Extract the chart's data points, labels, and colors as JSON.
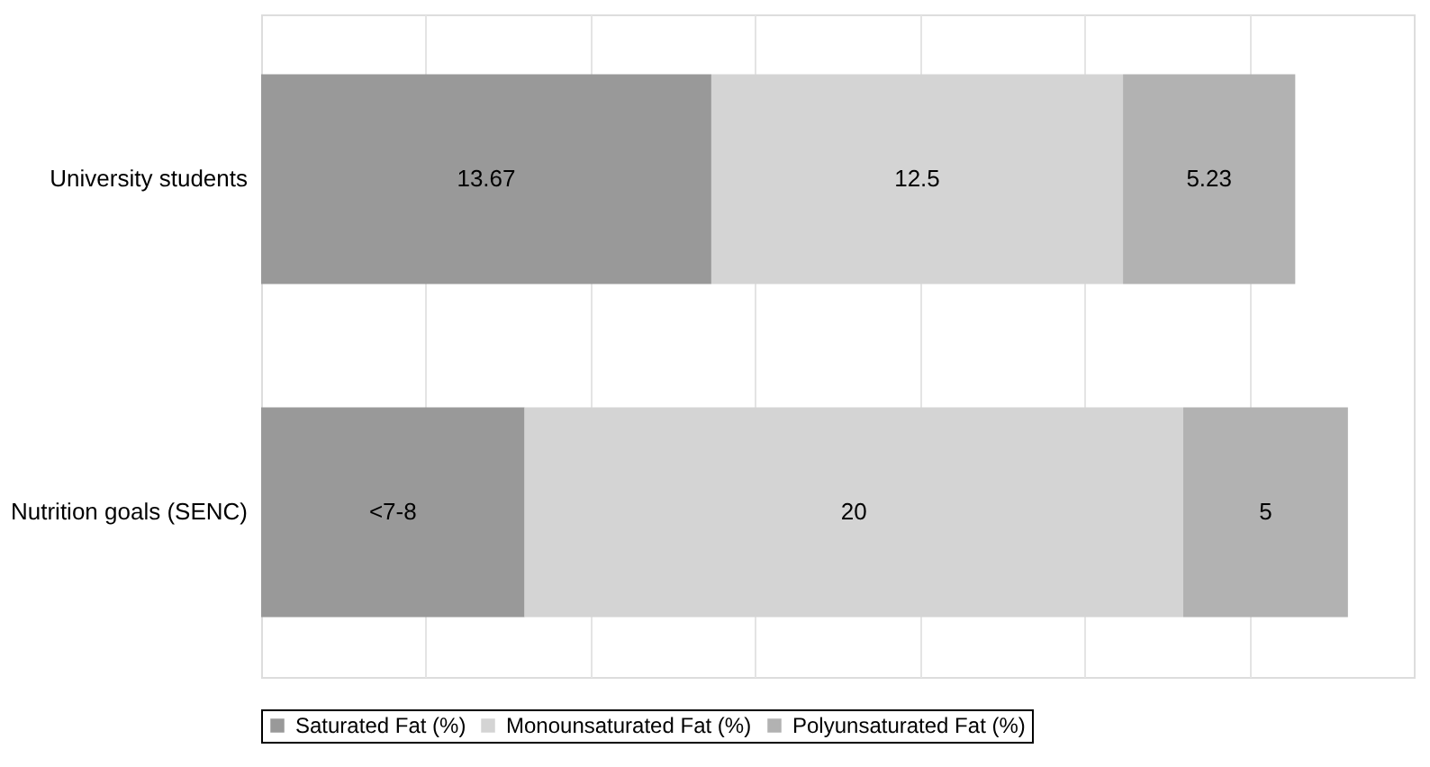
{
  "chart_data": {
    "type": "bar",
    "orientation": "horizontal",
    "stacked": true,
    "categories": [
      "University students",
      "Nutrition goals (SENC)"
    ],
    "series": [
      {
        "name": "Saturated Fat (%)",
        "color": "#999999",
        "values": [
          13.67,
          8
        ],
        "value_labels": [
          "13.67",
          "<7-8"
        ]
      },
      {
        "name": "Monounsaturated Fat (%)",
        "color": "#d4d4d4",
        "values": [
          12.5,
          20
        ],
        "value_labels": [
          "12.5",
          "20"
        ]
      },
      {
        "name": "Polyunsaturated Fat (%)",
        "color": "#b2b2b2",
        "values": [
          5.23,
          5
        ],
        "value_labels": [
          "5.23",
          "5"
        ]
      }
    ],
    "xlim": [
      0,
      35
    ],
    "xticks": [
      {
        "value": 0,
        "label": null
      },
      {
        "value": 5,
        "label": null
      },
      {
        "value": 10,
        "label": null
      },
      {
        "value": 15,
        "label": null
      },
      {
        "value": 20,
        "label": null
      },
      {
        "value": 25,
        "label": null
      },
      {
        "value": 30,
        "label": null
      }
    ],
    "grid": "x",
    "legend": "bottom",
    "tick_labels": "y"
  }
}
